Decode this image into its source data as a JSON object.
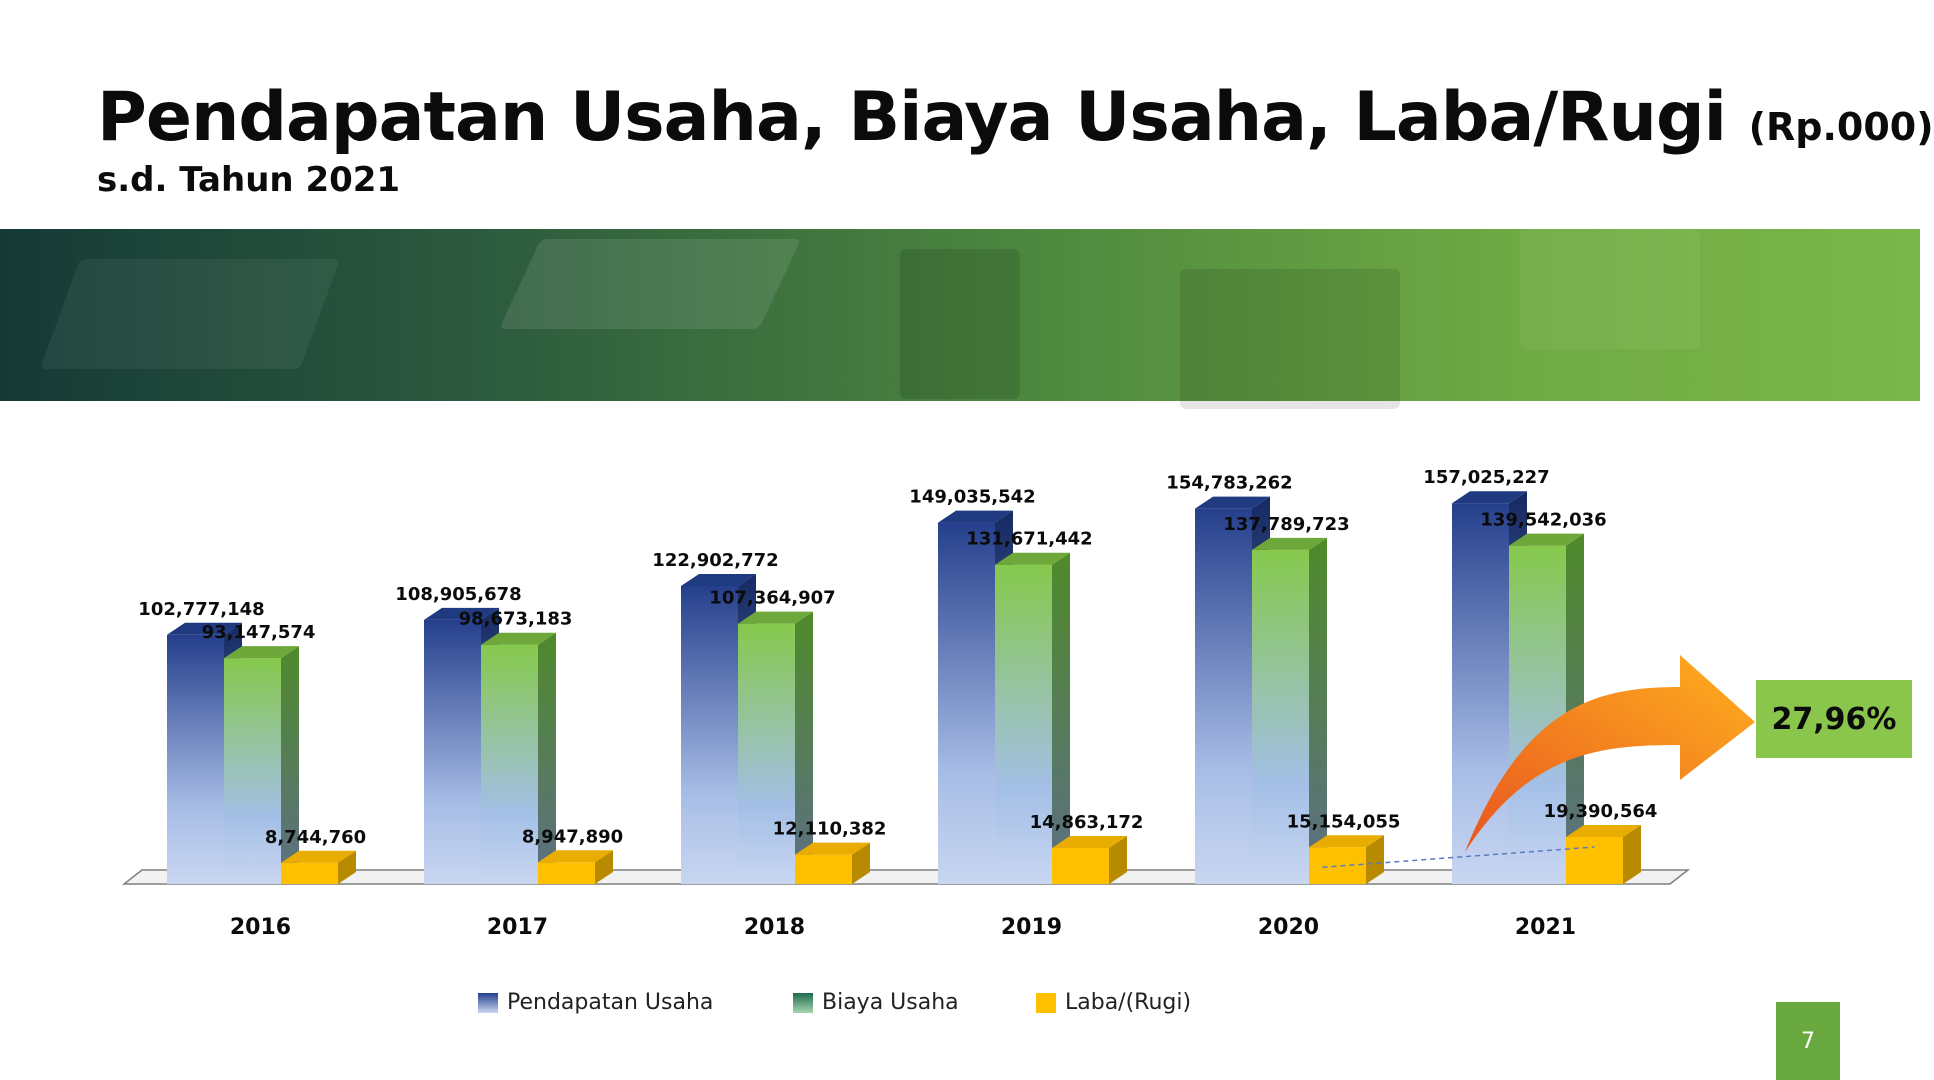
{
  "header": {
    "title": "Pendapatan Usaha, Biaya Usaha, Laba/Rugi",
    "title_unit": "(Rp.000)",
    "subtitle": "s.d. Tahun 2021"
  },
  "colors": {
    "revenue": "#2a4a94",
    "cost": "#86c94c",
    "profit": "#ffc000",
    "banner_dark": "#153a36",
    "banner_light": "#7ab649",
    "arrow_start": "#e8551f",
    "arrow_end": "#ffb01f",
    "badge": "#8ac64c",
    "page_number_bg": "#6aa93f"
  },
  "chart_data": {
    "type": "bar",
    "categories": [
      "2016",
      "2017",
      "2018",
      "2019",
      "2020",
      "2021"
    ],
    "series": [
      {
        "name": "Pendapatan Usaha",
        "values": [
          102777148,
          108905678,
          122902772,
          149035542,
          154783262,
          157025227
        ],
        "labels": [
          "102,777,148",
          "108,905,678",
          "122,902,772",
          "149,035,542",
          "154,783,262",
          "157,025,227"
        ]
      },
      {
        "name": "Biaya Usaha",
        "values": [
          93147574,
          98673183,
          107364907,
          131671442,
          137789723,
          139542036
        ],
        "labels": [
          "93,147,574",
          "98,673,183",
          "107,364,907",
          "131,671,442",
          "137,789,723",
          "139,542,036"
        ]
      },
      {
        "name": "Laba/(Rugi)",
        "values": [
          8744760,
          8947890,
          12110382,
          14863172,
          15154055,
          19390564
        ],
        "labels": [
          "8,744,760",
          "8,947,890",
          "12,110,382",
          "14,863,172",
          "15,154,055",
          "19,390,564"
        ]
      }
    ],
    "ylim": [
      0,
      160000000
    ],
    "grid": false,
    "legend": "bottom",
    "annotation": {
      "text": "27,96%",
      "from_category": "2020",
      "to_category": "2021",
      "series": "Laba/(Rugi)"
    }
  },
  "page": {
    "number": "7"
  }
}
